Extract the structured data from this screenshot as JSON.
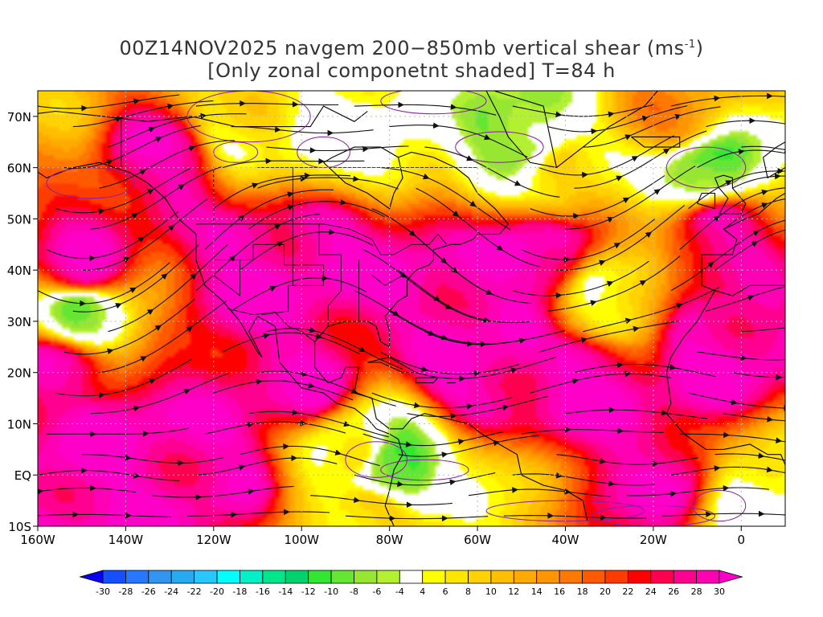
{
  "title": {
    "line1": "00Z14NOV2025 navgem 200−850mb vertical shear (ms",
    "line1_sup": "-1",
    "line1_end": ")",
    "line2": "[Only zonal componetnt shaded] T=84 h"
  },
  "map": {
    "lon_range": [
      -160,
      10
    ],
    "lat_range": [
      -10,
      75
    ],
    "lat_labels": [
      {
        "lat": 70,
        "text": "70N"
      },
      {
        "lat": 60,
        "text": "60N"
      },
      {
        "lat": 50,
        "text": "50N"
      },
      {
        "lat": 40,
        "text": "40N"
      },
      {
        "lat": 30,
        "text": "30N"
      },
      {
        "lat": 20,
        "text": "20N"
      },
      {
        "lat": 10,
        "text": "10N"
      },
      {
        "lat": 0,
        "text": "EQ"
      },
      {
        "lat": -10,
        "text": "10S"
      }
    ],
    "lon_labels": [
      {
        "lon": -160,
        "text": "160W"
      },
      {
        "lon": -140,
        "text": "140W"
      },
      {
        "lon": -120,
        "text": "120W"
      },
      {
        "lon": -100,
        "text": "100W"
      },
      {
        "lon": -80,
        "text": "80W"
      },
      {
        "lon": -60,
        "text": "60W"
      },
      {
        "lon": -40,
        "text": "40W"
      },
      {
        "lon": -20,
        "text": "20W"
      },
      {
        "lon": 0,
        "text": "0"
      }
    ],
    "shear_blobs": [
      {
        "lon": -150,
        "lat": 40,
        "v": 29
      },
      {
        "lon": -110,
        "lat": 40,
        "v": 30
      },
      {
        "lon": -95,
        "lat": 43,
        "v": 30
      },
      {
        "lon": -75,
        "lat": 40,
        "v": 29
      },
      {
        "lon": -60,
        "lat": 32,
        "v": 30
      },
      {
        "lon": -100,
        "lat": 18,
        "v": 29
      },
      {
        "lon": -60,
        "lat": 20,
        "v": 30
      },
      {
        "lon": -35,
        "lat": 18,
        "v": 30
      },
      {
        "lon": -5,
        "lat": 25,
        "v": 30
      },
      {
        "lon": -140,
        "lat": 7,
        "v": 30
      },
      {
        "lon": -120,
        "lat": 2,
        "v": 29
      },
      {
        "lon": -150,
        "lat": -5,
        "v": 30
      },
      {
        "lon": -45,
        "lat": 43,
        "v": 30
      },
      {
        "lon": -130,
        "lat": 62,
        "v": 28
      },
      {
        "lon": -20,
        "lat": 0,
        "v": 28
      },
      {
        "lon": -155,
        "lat": 20,
        "v": 27
      },
      {
        "lon": -5,
        "lat": 48,
        "v": 28
      },
      {
        "lon": -95,
        "lat": 66,
        "v": 3
      },
      {
        "lon": -80,
        "lat": 67,
        "v": 2
      },
      {
        "lon": -80,
        "lat": 2,
        "v": -12
      },
      {
        "lon": -88,
        "lat": 5,
        "v": 5
      },
      {
        "lon": -50,
        "lat": 66,
        "v": -8
      },
      {
        "lon": -8,
        "lat": 59,
        "v": -10
      },
      {
        "lon": -30,
        "lat": 35,
        "v": 5
      },
      {
        "lon": -150,
        "lat": 32,
        "v": -6
      },
      {
        "lon": -115,
        "lat": 68,
        "v": 6
      },
      {
        "lon": -40,
        "lat": 58,
        "v": 8
      },
      {
        "lon": 5,
        "lat": -5,
        "v": 2
      },
      {
        "lon": -60,
        "lat": -5,
        "v": 6
      },
      {
        "lon": -85,
        "lat": -8,
        "v": 10
      },
      {
        "lon": -160,
        "lat": 72,
        "v": 12
      },
      {
        "lon": -15,
        "lat": 70,
        "v": 14
      }
    ]
  },
  "colorbar": {
    "labels": [
      "-30",
      "-28",
      "-26",
      "-24",
      "-22",
      "-20",
      "-18",
      "-16",
      "-14",
      "-12",
      "-10",
      "-8",
      "-6",
      "-4",
      "4",
      "6",
      "8",
      "10",
      "12",
      "14",
      "16",
      "18",
      "20",
      "22",
      "24",
      "26",
      "28",
      "30"
    ],
    "colors": [
      "#0a00f0",
      "#1450ff",
      "#2878ff",
      "#3296f0",
      "#28aaf0",
      "#28c8ff",
      "#00ffff",
      "#00f0c8",
      "#00e68c",
      "#00d26e",
      "#32e632",
      "#64e632",
      "#96e632",
      "#b4f032",
      "#ffffff",
      "#ffff00",
      "#ffe600",
      "#ffd200",
      "#ffbe00",
      "#ffaa00",
      "#ff9600",
      "#ff7800",
      "#ff5a00",
      "#ff3c00",
      "#ff0000",
      "#ff0050",
      "#ff0090",
      "#ff00b4",
      "#ff00c8"
    ]
  }
}
